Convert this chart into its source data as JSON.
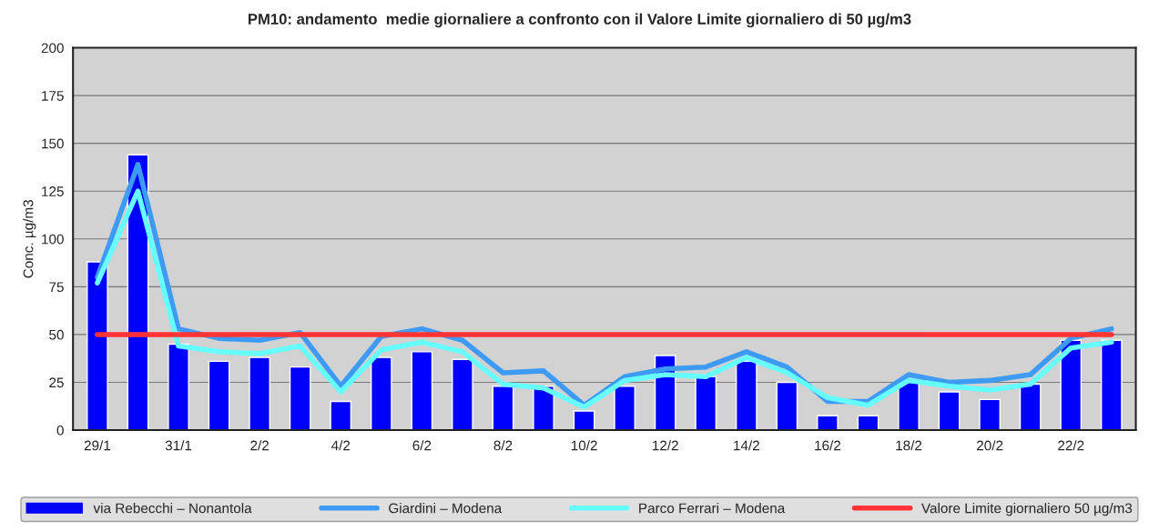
{
  "chart_data": {
    "type": "bar",
    "title": "PM10: andamento  medie giornaliere a confronto con il Valore Limite giornaliero di 50 µg/m3",
    "ylabel": "Conc. µg/m3",
    "categories": [
      "29/1",
      null,
      "31/1",
      null,
      "2/2",
      null,
      "4/2",
      null,
      "6/2",
      null,
      "8/2",
      null,
      "10/2",
      null,
      "12/2",
      null,
      "14/2",
      null,
      "16/2",
      null,
      "18/2",
      null,
      "20/2",
      null,
      "22/2",
      null
    ],
    "series": [
      {
        "name": "via Rebecchi – Nonantola",
        "color": "#0000ff",
        "values": [
          88,
          144,
          45,
          36,
          38,
          33,
          15,
          38,
          41,
          37,
          23,
          23,
          10,
          23,
          39,
          28,
          36,
          25,
          7.5,
          7.5,
          25,
          20,
          16,
          24,
          47,
          47
        ]
      },
      {
        "name": "Giardini – Modena",
        "type": "line",
        "color": "#3d9bf5",
        "values": [
          80,
          139,
          53,
          48,
          47,
          51,
          23,
          49,
          53,
          47,
          30,
          31,
          13,
          28,
          32,
          33,
          41,
          33,
          15,
          15,
          29,
          25,
          26,
          29,
          48,
          53
        ]
      },
      {
        "name": "Parco Ferrari – Modena",
        "type": "line",
        "color": "#66ffff",
        "values": [
          77,
          125,
          44,
          41,
          40,
          44,
          20,
          42,
          46,
          41,
          24,
          22,
          12,
          26,
          29,
          28,
          38,
          30,
          17,
          13,
          26,
          23,
          21,
          24,
          43,
          46
        ]
      }
    ],
    "ref_lines": [
      {
        "axis": "y",
        "value": 50,
        "label": "Valore Limite giornaliero 50 µg/m3",
        "color": "#ff3333"
      }
    ],
    "ylim": [
      0,
      200
    ],
    "yticks": [
      0,
      25,
      50,
      75,
      100,
      125,
      150,
      175,
      200
    ],
    "grid": "y",
    "legend": "bottom",
    "marker": "none",
    "line_style": "solid"
  }
}
